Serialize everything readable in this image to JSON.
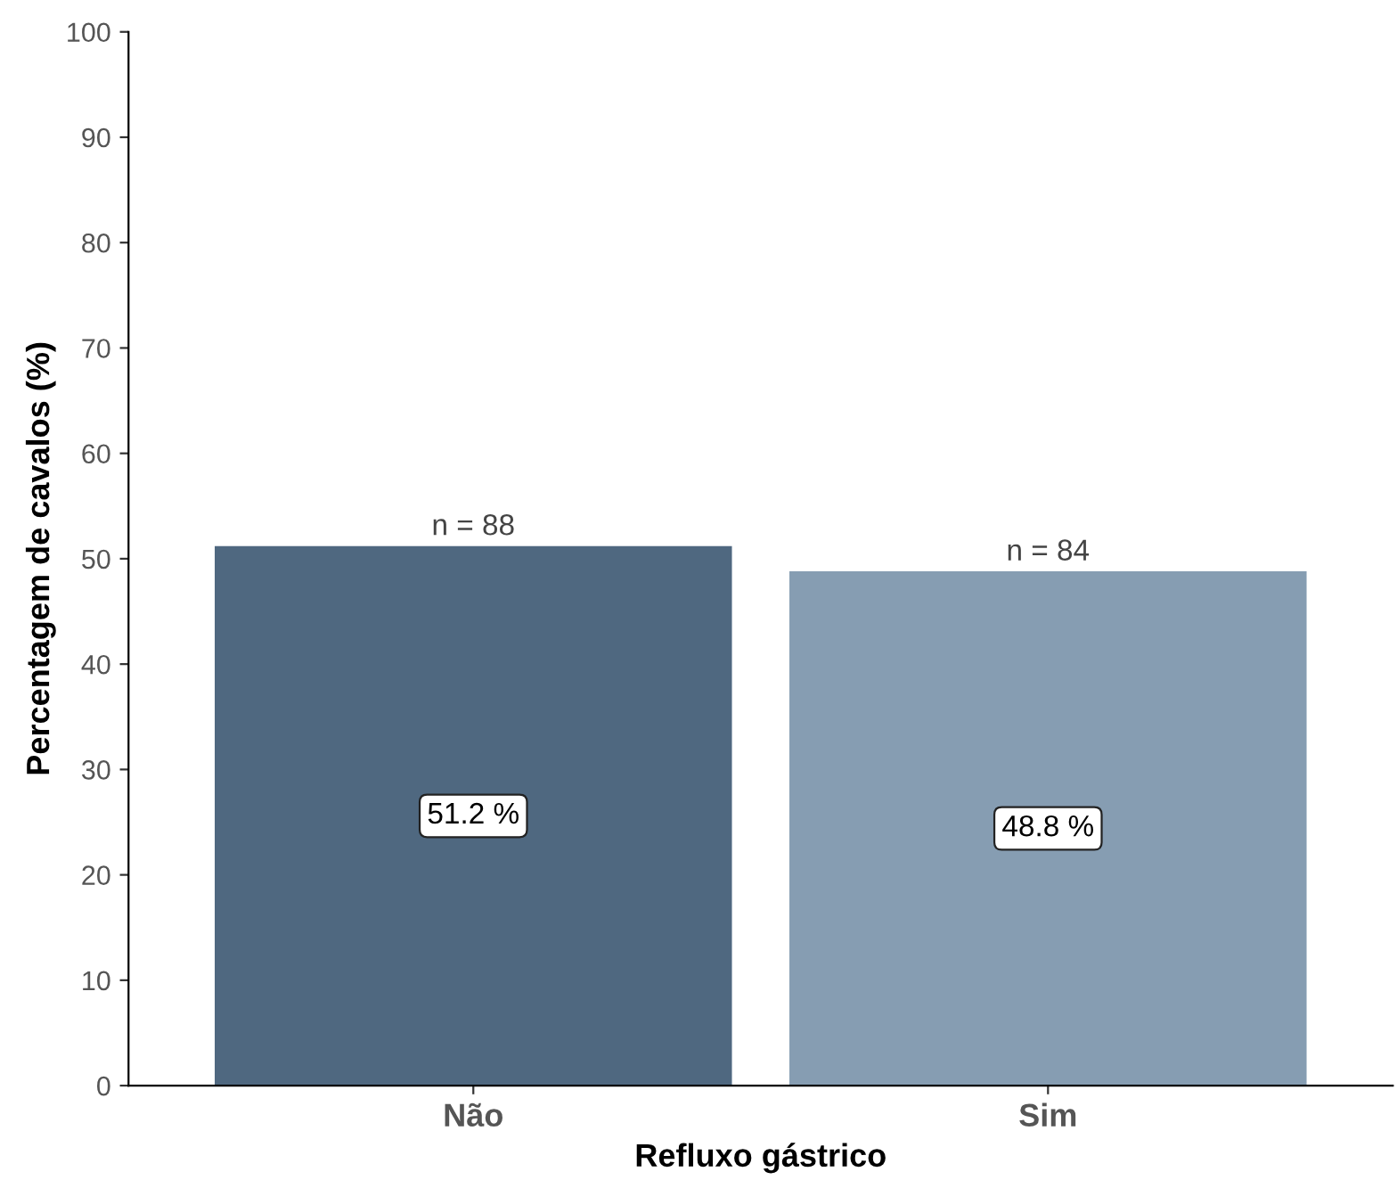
{
  "chart_data": {
    "type": "bar",
    "xlabel": "Refluxo gástrico",
    "ylabel": "Percentagem de cavalos (%)",
    "categories": [
      "Não",
      "Sim"
    ],
    "values": [
      51.2,
      48.8
    ],
    "colors": [
      "#4f6880",
      "#869db2"
    ],
    "value_labels": [
      "51.2 %",
      "48.8 %"
    ],
    "annotations": [
      {
        "text": "n = 88",
        "x": "Não",
        "y": 51.2
      },
      {
        "text": "n = 84",
        "x": "Sim",
        "y": 48.8
      }
    ],
    "ylim": [
      0,
      100
    ],
    "yticks": [
      0,
      10,
      20,
      30,
      40,
      50,
      60,
      70,
      80,
      90,
      100
    ],
    "grid": false,
    "legend": false
  }
}
